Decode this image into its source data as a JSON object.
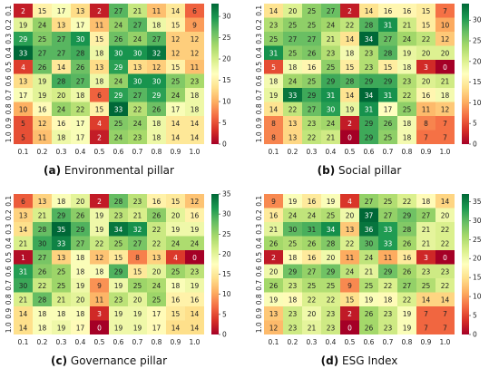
{
  "chart_data": [
    {
      "type": "heatmap",
      "caption_letter": "(a)",
      "caption_text": "Environmental pillar",
      "x": [
        "0.1",
        "0.2",
        "0.3",
        "0.4",
        "0.5",
        "0.6",
        "0.7",
        "0.8",
        "0.9",
        "1.0"
      ],
      "y": [
        "0.1",
        "0.2",
        "0.3",
        "0.4",
        "0.5",
        "0.6",
        "0.7",
        "0.8",
        "0.9",
        "1.0"
      ],
      "values": [
        [
          2,
          15,
          17,
          13,
          2,
          27,
          21,
          11,
          14,
          6
        ],
        [
          19,
          24,
          13,
          17,
          11,
          24,
          27,
          18,
          15,
          9
        ],
        [
          29,
          25,
          27,
          30,
          15,
          26,
          24,
          27,
          12,
          12
        ],
        [
          33,
          27,
          27,
          28,
          18,
          30,
          30,
          32,
          12,
          12
        ],
        [
          4,
          26,
          14,
          26,
          13,
          29,
          13,
          12,
          15,
          11
        ],
        [
          13,
          19,
          28,
          27,
          18,
          24,
          30,
          30,
          25,
          23
        ],
        [
          17,
          19,
          20,
          18,
          6,
          29,
          27,
          29,
          24,
          18
        ],
        [
          10,
          16,
          24,
          22,
          15,
          33,
          22,
          26,
          17,
          18
        ],
        [
          5,
          12,
          16,
          17,
          4,
          25,
          24,
          18,
          14,
          14
        ],
        [
          5,
          11,
          18,
          17,
          2,
          24,
          23,
          18,
          14,
          14
        ]
      ],
      "colorbar": {
        "min": 0,
        "max": 33,
        "ticks": [
          0,
          5,
          10,
          15,
          20,
          25,
          30
        ]
      }
    },
    {
      "type": "heatmap",
      "caption_letter": "(b)",
      "caption_text": "Social pillar",
      "x": [
        "0.1",
        "0.2",
        "0.3",
        "0.4",
        "0.5",
        "0.6",
        "0.7",
        "0.8",
        "0.9",
        "1.0"
      ],
      "y": [
        "0.1",
        "0.2",
        "0.3",
        "0.4",
        "0.5",
        "0.6",
        "0.7",
        "0.8",
        "0.9",
        "1.0"
      ],
      "values": [
        [
          14,
          20,
          25,
          27,
          2,
          14,
          16,
          16,
          15,
          7
        ],
        [
          23,
          25,
          25,
          24,
          22,
          28,
          31,
          21,
          15,
          10
        ],
        [
          25,
          27,
          27,
          21,
          14,
          34,
          27,
          24,
          22,
          12
        ],
        [
          31,
          25,
          26,
          23,
          18,
          23,
          28,
          19,
          20,
          20
        ],
        [
          5,
          18,
          16,
          25,
          15,
          23,
          15,
          18,
          3,
          0
        ],
        [
          18,
          24,
          25,
          29,
          28,
          29,
          29,
          23,
          20,
          21
        ],
        [
          19,
          33,
          29,
          31,
          14,
          34,
          31,
          22,
          16,
          18
        ],
        [
          14,
          22,
          27,
          30,
          19,
          31,
          17,
          25,
          11,
          12
        ],
        [
          8,
          13,
          23,
          24,
          2,
          29,
          26,
          18,
          8,
          7
        ],
        [
          8,
          13,
          22,
          21,
          0,
          29,
          25,
          18,
          7,
          7
        ]
      ],
      "colorbar": {
        "min": 0,
        "max": 34,
        "ticks": [
          0,
          5,
          10,
          15,
          20,
          25,
          30
        ]
      }
    },
    {
      "type": "heatmap",
      "caption_letter": "(c)",
      "caption_text": "Governance pillar",
      "x": [
        "0.1",
        "0.2",
        "0.3",
        "0.4",
        "0.5",
        "0.6",
        "0.7",
        "0.8",
        "0.9",
        "1.0"
      ],
      "y": [
        "0.1",
        "0.2",
        "0.3",
        "0.4",
        "0.5",
        "0.6",
        "0.7",
        "0.8",
        "0.9",
        "1.0"
      ],
      "values": [
        [
          6,
          13,
          18,
          20,
          2,
          28,
          23,
          16,
          15,
          12
        ],
        [
          13,
          21,
          29,
          26,
          19,
          23,
          21,
          26,
          20,
          16
        ],
        [
          14,
          28,
          35,
          29,
          19,
          34,
          32,
          22,
          19,
          19
        ],
        [
          21,
          30,
          33,
          27,
          22,
          25,
          27,
          22,
          24,
          24
        ],
        [
          1,
          27,
          13,
          18,
          12,
          15,
          8,
          13,
          4,
          0
        ],
        [
          31,
          26,
          25,
          18,
          18,
          29,
          15,
          20,
          25,
          23
        ],
        [
          30,
          22,
          25,
          19,
          9,
          19,
          25,
          24,
          18,
          19
        ],
        [
          21,
          28,
          21,
          20,
          11,
          23,
          20,
          25,
          16,
          16
        ],
        [
          14,
          18,
          18,
          18,
          3,
          19,
          19,
          17,
          15,
          14
        ],
        [
          14,
          18,
          19,
          17,
          0,
          19,
          19,
          17,
          14,
          14
        ]
      ],
      "colorbar": {
        "min": 0,
        "max": 35,
        "ticks": [
          0,
          5,
          10,
          15,
          20,
          25,
          30,
          35
        ]
      }
    },
    {
      "type": "heatmap",
      "caption_letter": "(d)",
      "caption_text": "ESG Index",
      "x": [
        "0.1",
        "0.2",
        "0.3",
        "0.4",
        "0.5",
        "0.6",
        "0.7",
        "0.8",
        "0.9",
        "1.0"
      ],
      "y": [
        "0.1",
        "0.2",
        "0.3",
        "0.4",
        "0.5",
        "0.6",
        "0.7",
        "0.8",
        "0.9",
        "1.0"
      ],
      "values": [
        [
          9,
          19,
          16,
          19,
          4,
          27,
          25,
          22,
          18,
          14
        ],
        [
          16,
          24,
          24,
          25,
          20,
          37,
          27,
          29,
          27,
          20
        ],
        [
          21,
          30,
          31,
          34,
          13,
          36,
          33,
          28,
          21,
          22
        ],
        [
          26,
          25,
          26,
          28,
          22,
          30,
          33,
          26,
          21,
          22
        ],
        [
          2,
          18,
          16,
          20,
          11,
          24,
          11,
          16,
          3,
          0
        ],
        [
          20,
          29,
          27,
          29,
          24,
          21,
          29,
          26,
          23,
          23
        ],
        [
          26,
          23,
          25,
          25,
          9,
          25,
          22,
          27,
          25,
          22
        ],
        [
          19,
          18,
          22,
          22,
          15,
          19,
          18,
          22,
          14,
          14
        ],
        [
          13,
          23,
          20,
          23,
          2,
          26,
          23,
          19,
          7,
          7
        ],
        [
          12,
          23,
          21,
          23,
          0,
          26,
          23,
          19,
          7,
          7
        ]
      ],
      "colorbar": {
        "min": 0,
        "max": 37,
        "ticks": [
          0,
          5,
          10,
          15,
          20,
          25,
          30,
          35
        ]
      }
    }
  ]
}
